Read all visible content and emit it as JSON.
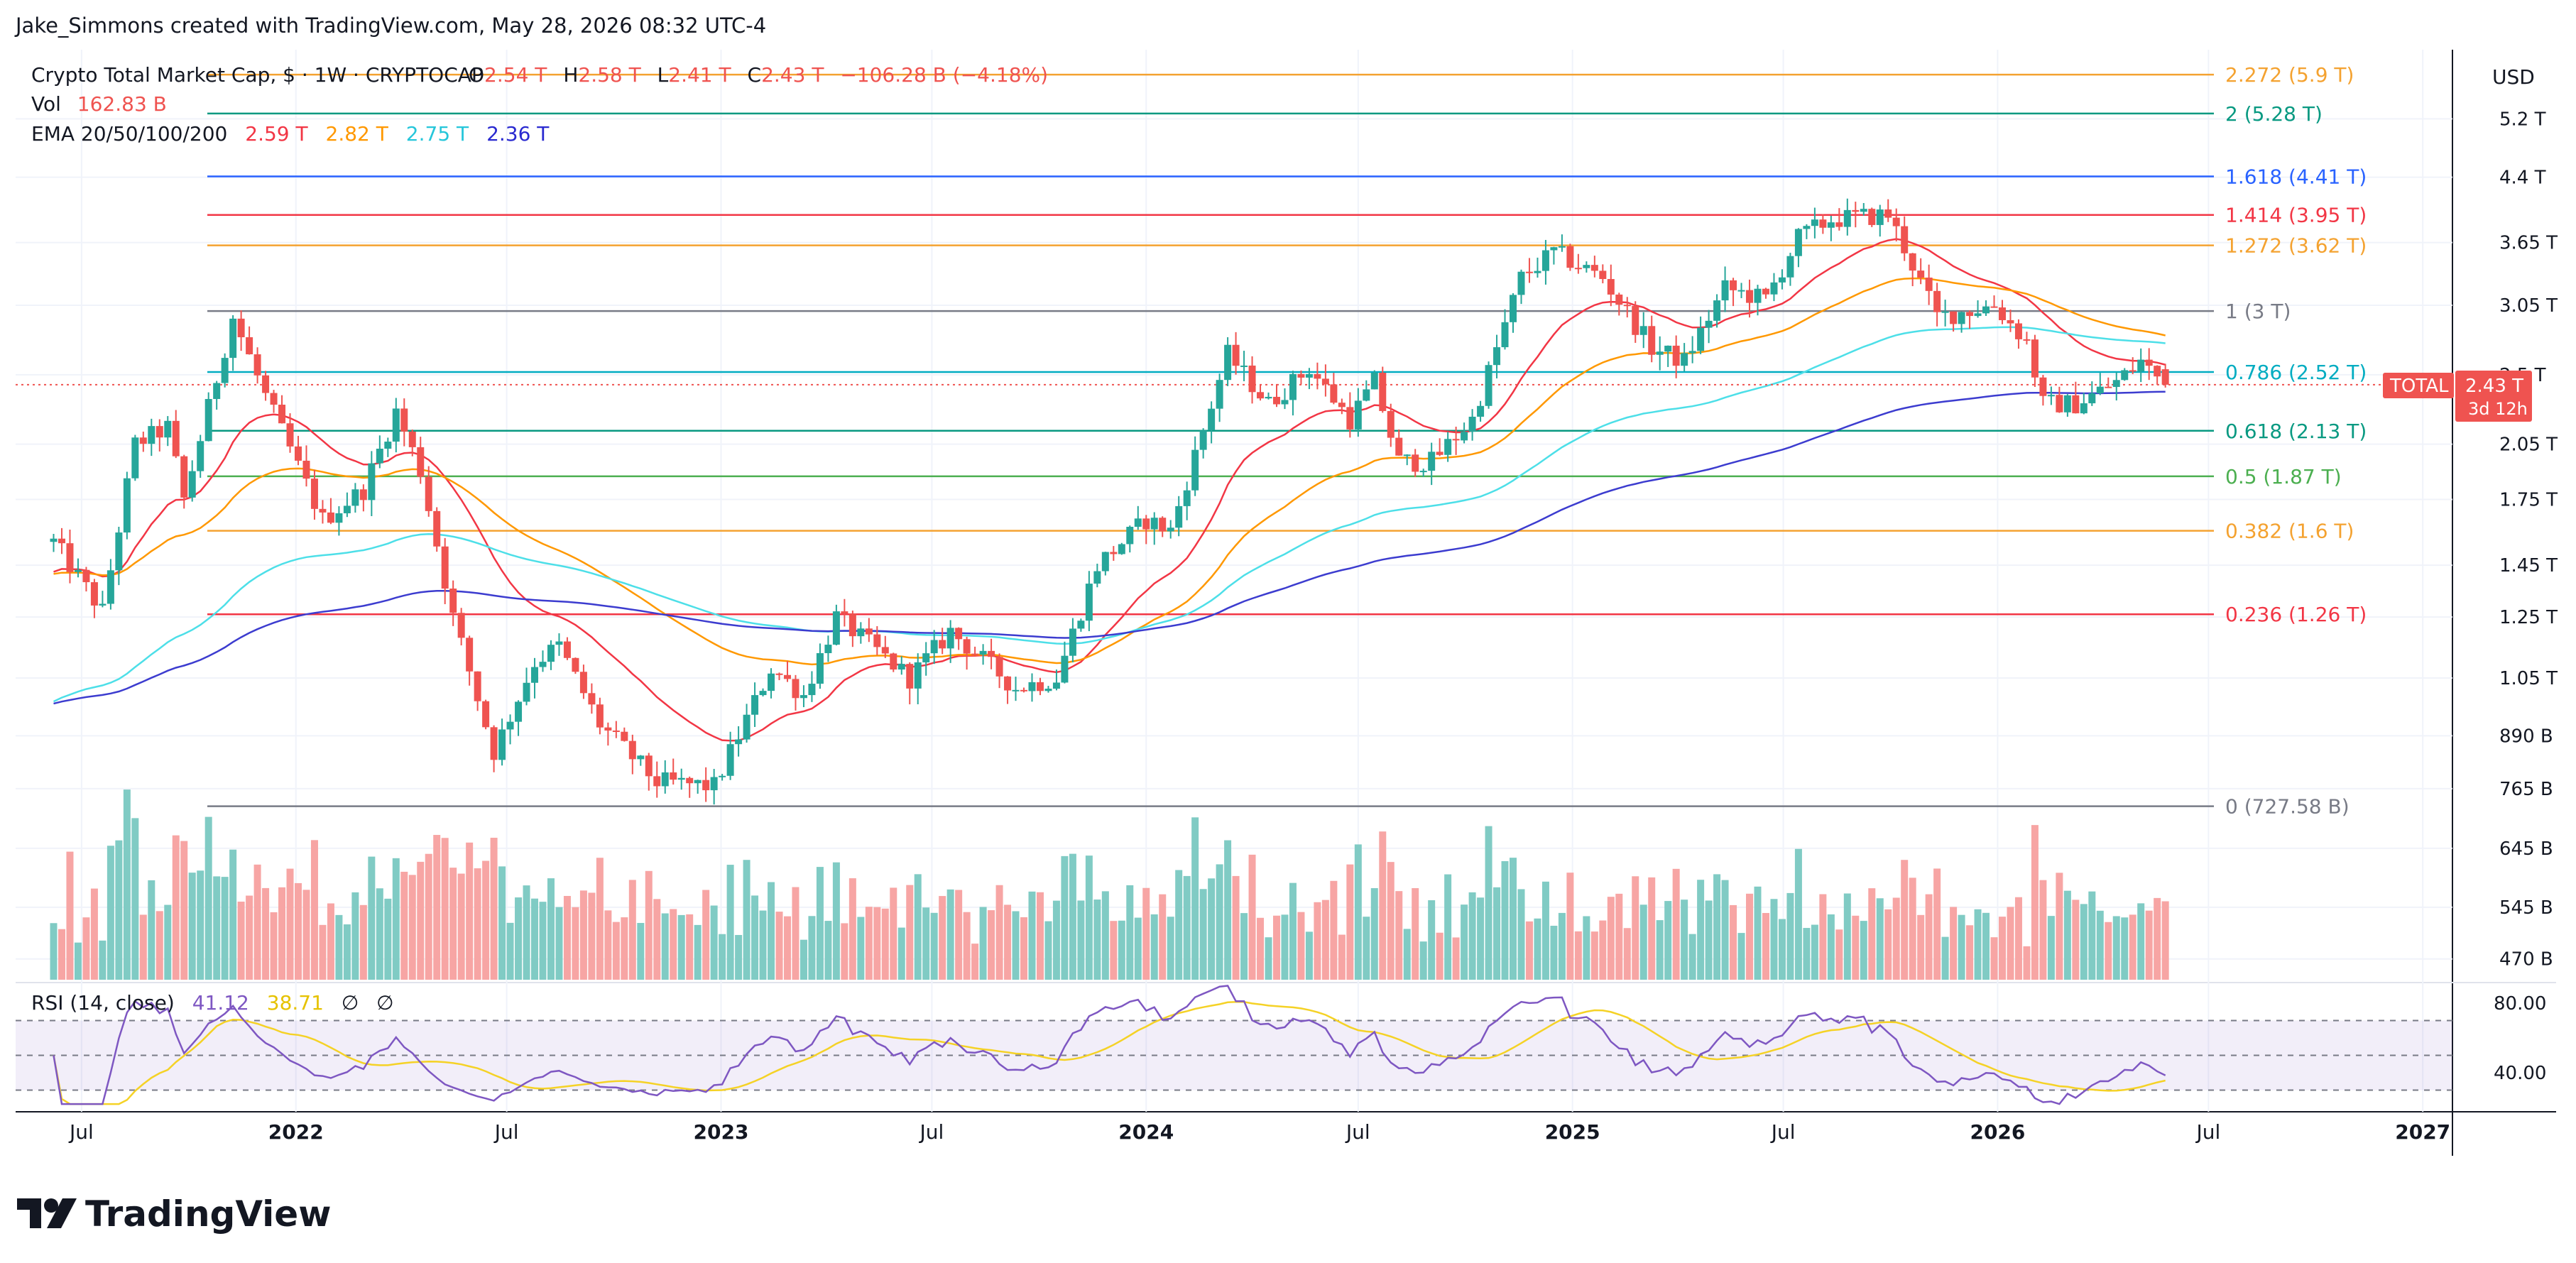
{
  "header": {
    "credit": "Jake_Simmons created with TradingView.com, May 28, 2026 08:32 UTC-4"
  },
  "legend": {
    "symbol": "Crypto Total Market Cap, $ · 1W · CRYPTOCAP",
    "ohlc": [
      {
        "k": "O",
        "v": "2.54 T"
      },
      {
        "k": "H",
        "v": "2.58 T"
      },
      {
        "k": "L",
        "v": "2.41 T"
      },
      {
        "k": "C",
        "v": "2.43 T"
      }
    ],
    "change": "−106.28 B (−4.18%)",
    "vol_label": "Vol",
    "vol_value": "162.83 B",
    "ema_label": "EMA 20/50/100/200",
    "ema_values": [
      "2.59 T",
      "2.82 T",
      "2.75 T",
      "2.36 T"
    ]
  },
  "rsi_legend": {
    "label": "RSI (14, close)",
    "rsi": "41.12",
    "ma": "38.71",
    "icons": [
      "∅",
      "∅"
    ]
  },
  "currency": "USD",
  "price_tag": {
    "symbol": "TOTAL",
    "price": "2.43 T",
    "countdown": "3d 12h"
  },
  "logo_text": "TradingView",
  "colors": {
    "up": "#26a69a",
    "down": "#ef5350",
    "vol_up": "#80cbc4",
    "vol_down": "#f7a5a4",
    "ema20": "#f23645",
    "ema50": "#ff9800",
    "ema100": "#4ddfe8",
    "ema200": "#3c3ccf",
    "rsi": "#7e57c2",
    "rsi_ma": "#f5d226"
  },
  "chart_data": {
    "type": "candlestick",
    "scale": "log",
    "price_axis": {
      "ticks": [
        "5.2 T",
        "4.4 T",
        "3.65 T",
        "3.05 T",
        "2.5 T",
        "2.05 T",
        "1.75 T",
        "1.45 T",
        "1.25 T",
        "1.05 T",
        "890 B",
        "765 B",
        "645 B",
        "545 B",
        "470 B"
      ]
    },
    "time_axis": {
      "ticks": [
        "Jul",
        "2022",
        "Jul",
        "2023",
        "Jul",
        "2024",
        "Jul",
        "2025",
        "Jul",
        "2026",
        "Jul",
        "2027"
      ]
    },
    "fib_levels": [
      {
        "label": "2.272 (5.9 T)",
        "value": 5.9,
        "color": "#f4a230"
      },
      {
        "label": "2 (5.28 T)",
        "value": 5.28,
        "color": "#089981"
      },
      {
        "label": "1.618 (4.41 T)",
        "value": 4.41,
        "color": "#2962ff"
      },
      {
        "label": "1.414 (3.95 T)",
        "value": 3.95,
        "color": "#f23645"
      },
      {
        "label": "1.272 (3.62 T)",
        "value": 3.62,
        "color": "#f4a230"
      },
      {
        "label": "1 (3 T)",
        "value": 3.0,
        "color": "#787b86"
      },
      {
        "label": "0.786 (2.52 T)",
        "value": 2.52,
        "color": "#00acc1"
      },
      {
        "label": "0.618 (2.13 T)",
        "value": 2.13,
        "color": "#089981"
      },
      {
        "label": "0.5 (1.87 T)",
        "value": 1.87,
        "color": "#4caf50"
      },
      {
        "label": "0.382 (1.6 T)",
        "value": 1.6,
        "color": "#f4a230"
      },
      {
        "label": "0.236 (1.26 T)",
        "value": 1.26,
        "color": "#f23645"
      },
      {
        "label": "0 (727.58 B)",
        "value": 0.72758,
        "color": "#787b86"
      }
    ],
    "price_keypoints": [
      [
        "2021-06-07",
        1.55
      ],
      [
        "2021-07-19",
        1.27
      ],
      [
        "2021-08-16",
        2.05
      ],
      [
        "2021-09-13",
        2.15
      ],
      [
        "2021-09-27",
        1.75
      ],
      [
        "2021-11-08",
        2.95
      ],
      [
        "2021-12-06",
        2.35
      ],
      [
        "2022-01-24",
        1.65
      ],
      [
        "2022-02-28",
        1.8
      ],
      [
        "2022-03-28",
        2.25
      ],
      [
        "2022-04-18",
        1.9
      ],
      [
        "2022-05-16",
        1.25
      ],
      [
        "2022-06-20",
        0.85
      ],
      [
        "2022-07-25",
        1.1
      ],
      [
        "2022-08-15",
        1.15
      ],
      [
        "2022-09-19",
        0.92
      ],
      [
        "2022-11-07",
        0.78
      ],
      [
        "2022-12-26",
        0.77
      ],
      [
        "2023-02-13",
        1.08
      ],
      [
        "2023-03-13",
        1.0
      ],
      [
        "2023-04-10",
        1.25
      ],
      [
        "2023-06-12",
        1.05
      ],
      [
        "2023-07-17",
        1.2
      ],
      [
        "2023-09-11",
        1.02
      ],
      [
        "2023-10-16",
        1.05
      ],
      [
        "2023-11-20",
        1.45
      ],
      [
        "2024-01-01",
        1.65
      ],
      [
        "2024-01-22",
        1.6
      ],
      [
        "2024-03-11",
        2.65
      ],
      [
        "2024-04-15",
        2.3
      ],
      [
        "2024-05-20",
        2.55
      ],
      [
        "2024-06-24",
        2.2
      ],
      [
        "2024-07-15",
        2.45
      ],
      [
        "2024-08-05",
        1.95
      ],
      [
        "2024-09-02",
        1.95
      ],
      [
        "2024-10-07",
        2.2
      ],
      [
        "2024-11-18",
        3.3
      ],
      [
        "2024-12-16",
        3.55
      ],
      [
        "2025-01-27",
        3.3
      ],
      [
        "2025-03-10",
        2.7
      ],
      [
        "2025-04-07",
        2.6
      ],
      [
        "2025-05-12",
        3.2
      ],
      [
        "2025-06-16",
        3.1
      ],
      [
        "2025-07-14",
        3.7
      ],
      [
        "2025-08-11",
        3.9
      ],
      [
        "2025-09-29",
        3.95
      ],
      [
        "2025-10-13",
        3.6
      ],
      [
        "2025-11-10",
        2.95
      ],
      [
        "2025-12-29",
        3.05
      ],
      [
        "2026-01-26",
        2.75
      ],
      [
        "2026-02-09",
        2.3
      ],
      [
        "2026-03-09",
        2.3
      ],
      [
        "2026-04-13",
        2.45
      ],
      [
        "2026-05-04",
        2.6
      ],
      [
        "2026-05-25",
        2.43
      ]
    ],
    "volume_range": {
      "min": "470 B",
      "max": "890 B"
    },
    "rsi_axis": {
      "ticks": [
        "80.00",
        "40.00"
      ],
      "bands": [
        70,
        50,
        30
      ]
    }
  }
}
